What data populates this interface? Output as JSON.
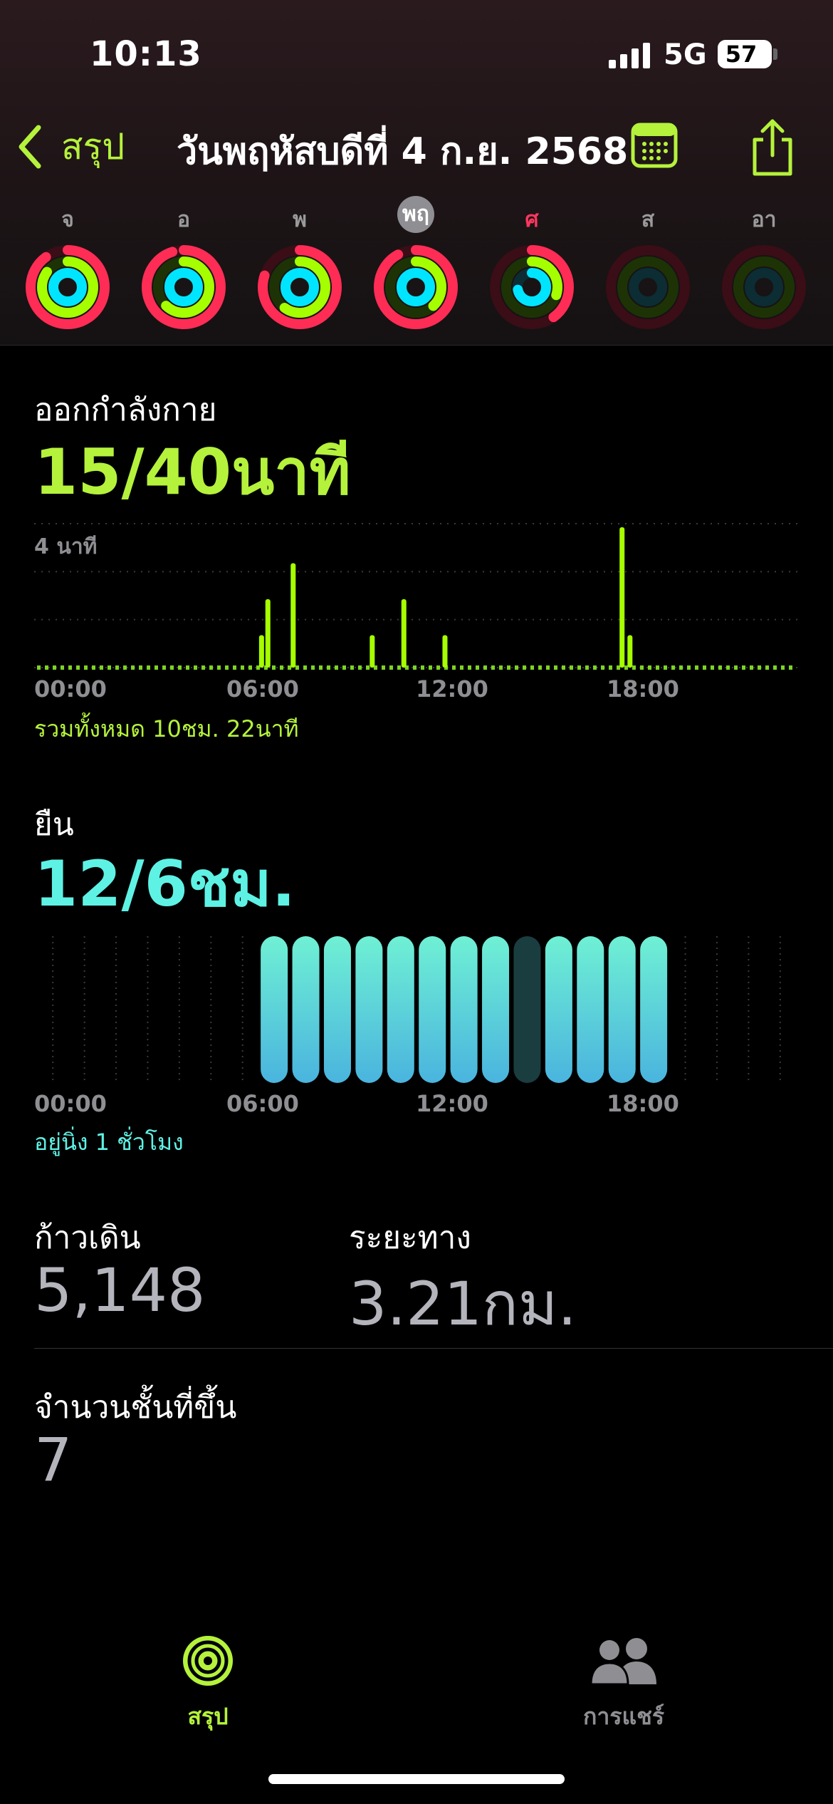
{
  "status_bar": {
    "time": "10:13",
    "network": "5G",
    "battery": "57"
  },
  "nav": {
    "back_label": "สรุป",
    "title": "วันพฤหัสบดีที่ 4 ก.ย. 2568"
  },
  "week": [
    {
      "label": "จ",
      "move": 0.9,
      "exercise": 0.85,
      "stand": 1.0,
      "today": false
    },
    {
      "label": "อ",
      "move": 0.95,
      "exercise": 0.62,
      "stand": 1.0,
      "today": false
    },
    {
      "label": "พ",
      "move": 0.8,
      "exercise": 0.6,
      "stand": 1.0,
      "today": false
    },
    {
      "label": "พฤ",
      "move": 0.92,
      "exercise": 0.38,
      "stand": 1.0,
      "today": true
    },
    {
      "label": "ศ",
      "move": 0.4,
      "exercise": 0.3,
      "stand": 0.72,
      "today": false
    },
    {
      "label": "ส",
      "move": 0.0,
      "exercise": 0.0,
      "stand": 0.0,
      "today": false
    },
    {
      "label": "อา",
      "move": 0.0,
      "exercise": 0.0,
      "stand": 0.0,
      "today": false
    }
  ],
  "exercise": {
    "label": "ออกกำลังกาย",
    "value": "15/40นาที",
    "max_label": "4 นาที",
    "total": "รวมทั้งหมด 10ชม. 22นาที",
    "x_ticks": [
      "00:00",
      "06:00",
      "12:00",
      "18:00"
    ]
  },
  "stand": {
    "label": "ยืน",
    "value": "12/6ชม.",
    "note": "อยู่นิ่ง 1 ชั่วโมง",
    "x_ticks": [
      "00:00",
      "06:00",
      "12:00",
      "18:00"
    ]
  },
  "steps": {
    "label": "ก้าวเดิน",
    "value": "5,148"
  },
  "distance": {
    "label": "ระยะทาง",
    "value": "3.21กม."
  },
  "flights": {
    "label": "จำนวนชั้นที่ขึ้น",
    "value": "7"
  },
  "tabs": [
    {
      "label": "สรุป",
      "icon": "activity-rings-icon",
      "active": true
    },
    {
      "label": "การแชร์",
      "icon": "people-icon",
      "active": false
    }
  ],
  "colors": {
    "accent": "#b5f23c",
    "move": "#ff2d55",
    "exercise": "#a6ff00",
    "stand": "#00e5ff",
    "stand_bar_top": "#6ff0d4",
    "stand_bar_bottom": "#4ab4de"
  },
  "chart_data": [
    {
      "type": "bar",
      "title": "ออกกำลังกาย",
      "x_unit": "hour",
      "x_range": [
        0,
        24
      ],
      "ylim": [
        0,
        4
      ],
      "y_unit": "นาที",
      "points": [
        {
          "x": 7.1,
          "y": 0.9
        },
        {
          "x": 7.3,
          "y": 1.9
        },
        {
          "x": 8.1,
          "y": 2.9
        },
        {
          "x": 10.6,
          "y": 0.9
        },
        {
          "x": 11.6,
          "y": 1.9
        },
        {
          "x": 12.9,
          "y": 0.9
        },
        {
          "x": 18.5,
          "y": 3.9
        },
        {
          "x": 18.75,
          "y": 0.9
        }
      ]
    },
    {
      "type": "bar",
      "title": "ยืน",
      "x_unit": "hour",
      "x_range": [
        0,
        24
      ],
      "hours": [
        7,
        8,
        9,
        10,
        11,
        12,
        13,
        14,
        15,
        16,
        17,
        18,
        19
      ],
      "stood": [
        1,
        1,
        1,
        1,
        1,
        1,
        1,
        1,
        0,
        1,
        1,
        1,
        1
      ]
    }
  ]
}
